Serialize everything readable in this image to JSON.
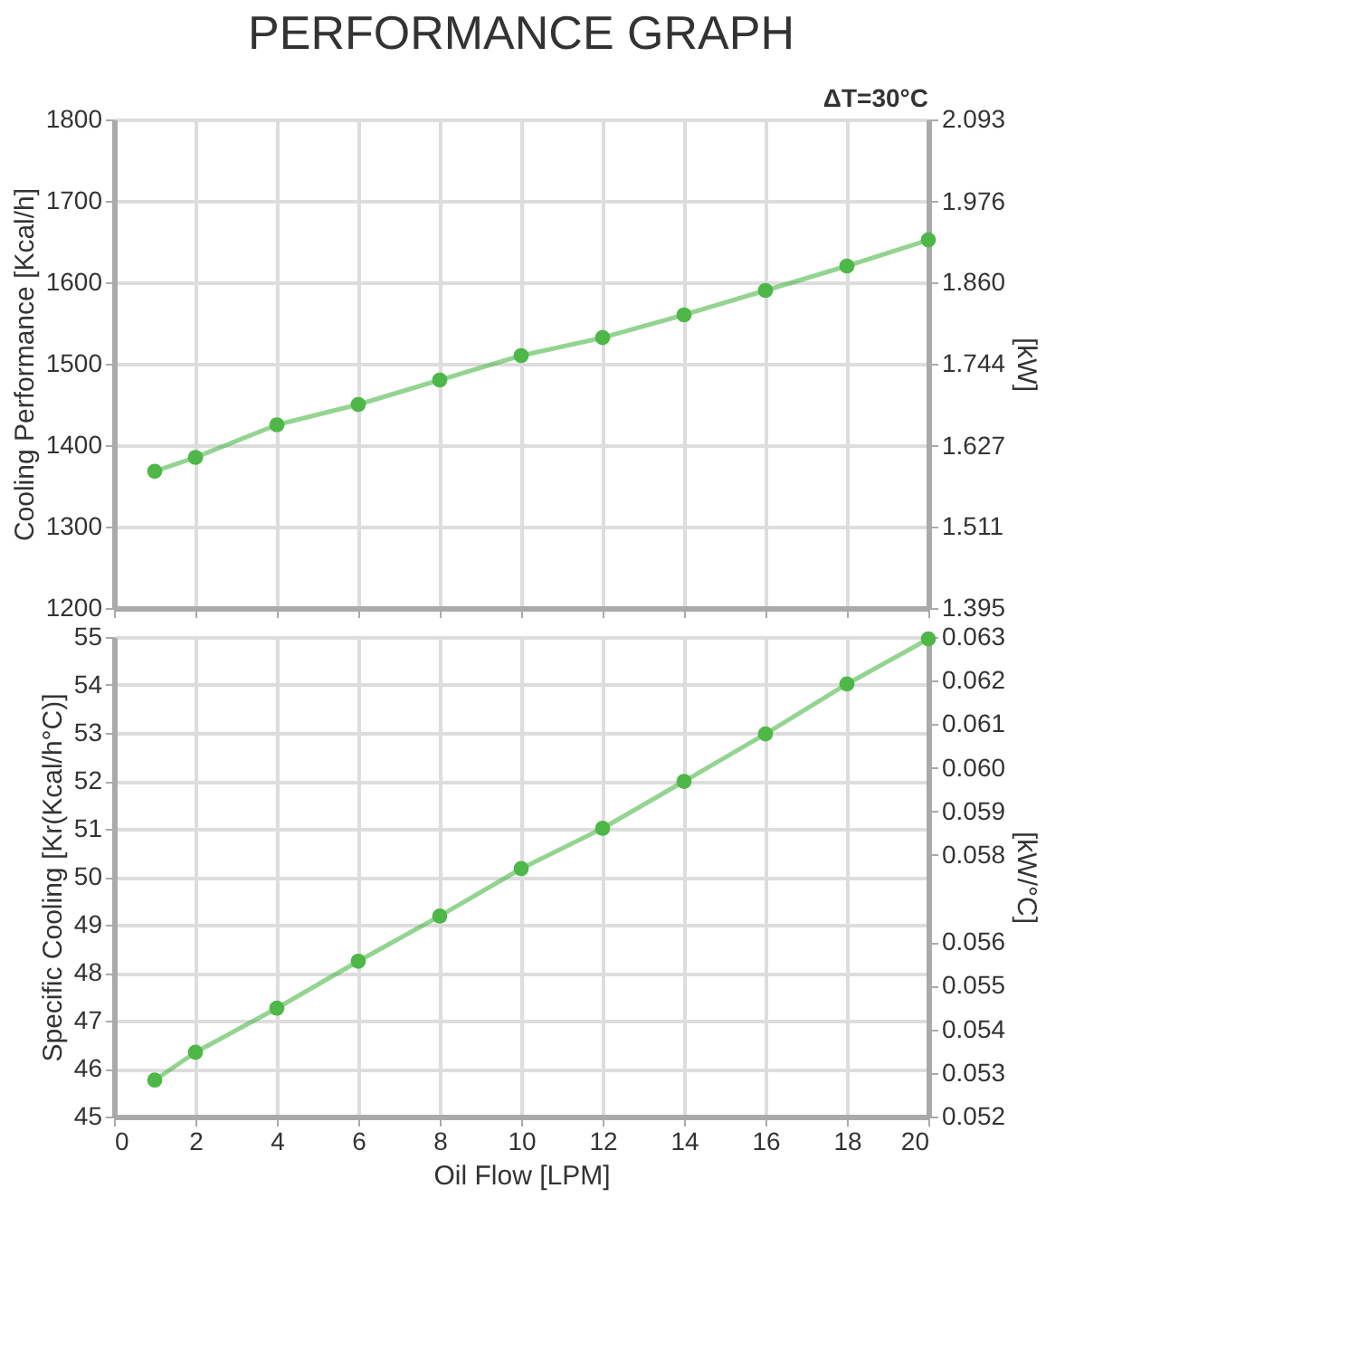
{
  "chart_data": [
    {
      "type": "line",
      "title": "PERFORMANCE GRAPH",
      "annotations": [
        "ΔT=30°C"
      ],
      "ylabel": "Cooling Performance [Kcal/h]",
      "y2label": "[kW]",
      "x": [
        1,
        2,
        4,
        6,
        8,
        10,
        12,
        14,
        16,
        18,
        20
      ],
      "series": [
        {
          "color": "#4db748",
          "values": [
            1368,
            1385,
            1425,
            1450,
            1480,
            1510,
            1532,
            1560,
            1590,
            1620,
            1652
          ]
        }
      ],
      "xlim": [
        0,
        20
      ],
      "xticks": [
        0,
        2,
        4,
        6,
        8,
        10,
        12,
        14,
        16,
        18,
        20
      ],
      "ylim": [
        1200,
        1800
      ],
      "yticks": [
        1200,
        1300,
        1400,
        1500,
        1600,
        1700,
        1800
      ],
      "y2lim": [
        1.395,
        2.093
      ],
      "y2ticks": [
        1.395,
        1.511,
        1.627,
        1.744,
        {
          "value": 1.86,
          "label": "1.860"
        },
        1.976,
        2.093
      ],
      "grid": true,
      "marker": "circle",
      "line_style": "solid",
      "tick_labels": "y"
    },
    {
      "type": "line",
      "ylabel": "Specific Cooling [Kr(Kcal/h°C)]",
      "y2label": "[kW/°C]",
      "xlabel": "Oil Flow [LPM]",
      "x": [
        1,
        2,
        4,
        6,
        8,
        10,
        12,
        14,
        16,
        18,
        20
      ],
      "series": [
        {
          "color": "#4db748",
          "values": [
            45.76,
            46.34,
            47.26,
            48.24,
            49.18,
            50.17,
            51.01,
            51.99,
            52.98,
            54.02,
            54.96
          ]
        }
      ],
      "xlim": [
        0,
        20
      ],
      "xticks": [
        0,
        2,
        4,
        6,
        8,
        10,
        12,
        14,
        16,
        18,
        20
      ],
      "ylim": [
        45,
        55
      ],
      "yticks": [
        45,
        46,
        47,
        48,
        49,
        50,
        51,
        52,
        53,
        54,
        55
      ],
      "y2lim": [
        0.052,
        0.063
      ],
      "y2ticks": [
        0.052,
        0.053,
        0.054,
        0.055,
        0.056,
        0.058,
        0.059,
        {
          "value": 0.06,
          "label": "0.060"
        },
        0.061,
        0.062,
        0.063
      ],
      "grid": true,
      "marker": "circle",
      "line_style": "solid"
    }
  ]
}
